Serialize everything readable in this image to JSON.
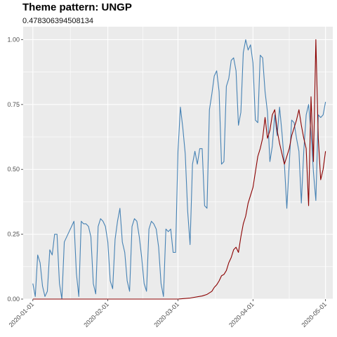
{
  "chart_data": {
    "type": "line",
    "title": "Theme pattern: UNGP",
    "subtitle": "0.478306394508134",
    "xlabel": "",
    "ylabel": "",
    "ylim": [
      0,
      1.05
    ],
    "xlim": [
      "2019-12-28",
      "2020-05-04"
    ],
    "y_ticks": [
      {
        "value": 0,
        "label": "0.00"
      },
      {
        "value": 0.25,
        "label": "0.25"
      },
      {
        "value": 0.5,
        "label": "0.50"
      },
      {
        "value": 0.75,
        "label": "0.75"
      },
      {
        "value": 1,
        "label": "1.00"
      }
    ],
    "x_ticks": [
      {
        "date": "2020-01-01",
        "label": "2020-01-01"
      },
      {
        "date": "2020-02-01",
        "label": "2020-02-01"
      },
      {
        "date": "2020-03-01",
        "label": "2020-03-01"
      },
      {
        "date": "2020-04-01",
        "label": "2020-04-01"
      },
      {
        "date": "2020-05-01",
        "label": "2020-05-01"
      }
    ],
    "grid": true,
    "series": [
      {
        "color": "#4682b4",
        "points": [
          [
            "2020-01-01",
            0.06
          ],
          [
            "2020-01-02",
            0.01
          ],
          [
            "2020-01-03",
            0.17
          ],
          [
            "2020-01-04",
            0.14
          ],
          [
            "2020-01-05",
            0.05
          ],
          [
            "2020-01-06",
            0.01
          ],
          [
            "2020-01-07",
            0.03
          ],
          [
            "2020-01-08",
            0.19
          ],
          [
            "2020-01-09",
            0.17
          ],
          [
            "2020-01-10",
            0.25
          ],
          [
            "2020-01-11",
            0.25
          ],
          [
            "2020-01-12",
            0.06
          ],
          [
            "2020-01-13",
            0.0
          ],
          [
            "2020-01-14",
            0.22
          ],
          [
            "2020-01-15",
            0.24
          ],
          [
            "2020-01-16",
            0.26
          ],
          [
            "2020-01-17",
            0.28
          ],
          [
            "2020-01-18",
            0.3
          ],
          [
            "2020-01-19",
            0.1
          ],
          [
            "2020-01-20",
            0.01
          ],
          [
            "2020-01-21",
            0.3
          ],
          [
            "2020-01-22",
            0.29
          ],
          [
            "2020-01-23",
            0.29
          ],
          [
            "2020-01-24",
            0.28
          ],
          [
            "2020-01-25",
            0.24
          ],
          [
            "2020-01-26",
            0.06
          ],
          [
            "2020-01-27",
            0.02
          ],
          [
            "2020-01-28",
            0.28
          ],
          [
            "2020-01-29",
            0.31
          ],
          [
            "2020-01-30",
            0.3
          ],
          [
            "2020-01-31",
            0.28
          ],
          [
            "2020-02-01",
            0.22
          ],
          [
            "2020-02-02",
            0.07
          ],
          [
            "2020-02-03",
            0.04
          ],
          [
            "2020-02-04",
            0.23
          ],
          [
            "2020-02-05",
            0.3
          ],
          [
            "2020-02-06",
            0.35
          ],
          [
            "2020-02-07",
            0.22
          ],
          [
            "2020-02-08",
            0.18
          ],
          [
            "2020-02-09",
            0.07
          ],
          [
            "2020-02-10",
            0.03
          ],
          [
            "2020-02-11",
            0.28
          ],
          [
            "2020-02-12",
            0.31
          ],
          [
            "2020-02-13",
            0.3
          ],
          [
            "2020-02-14",
            0.24
          ],
          [
            "2020-02-15",
            0.16
          ],
          [
            "2020-02-16",
            0.06
          ],
          [
            "2020-02-17",
            0.03
          ],
          [
            "2020-02-18",
            0.27
          ],
          [
            "2020-02-19",
            0.3
          ],
          [
            "2020-02-20",
            0.29
          ],
          [
            "2020-02-21",
            0.27
          ],
          [
            "2020-02-22",
            0.2
          ],
          [
            "2020-02-23",
            0.06
          ],
          [
            "2020-02-24",
            0.01
          ],
          [
            "2020-02-25",
            0.27
          ],
          [
            "2020-02-26",
            0.26
          ],
          [
            "2020-02-27",
            0.27
          ],
          [
            "2020-02-28",
            0.18
          ],
          [
            "2020-02-29",
            0.18
          ],
          [
            "2020-03-01",
            0.57
          ],
          [
            "2020-03-02",
            0.74
          ],
          [
            "2020-03-03",
            0.66
          ],
          [
            "2020-03-04",
            0.56
          ],
          [
            "2020-03-05",
            0.34
          ],
          [
            "2020-03-06",
            0.21
          ],
          [
            "2020-03-07",
            0.52
          ],
          [
            "2020-03-08",
            0.57
          ],
          [
            "2020-03-09",
            0.52
          ],
          [
            "2020-03-10",
            0.58
          ],
          [
            "2020-03-11",
            0.58
          ],
          [
            "2020-03-12",
            0.36
          ],
          [
            "2020-03-13",
            0.35
          ],
          [
            "2020-03-14",
            0.73
          ],
          [
            "2020-03-15",
            0.79
          ],
          [
            "2020-03-16",
            0.86
          ],
          [
            "2020-03-17",
            0.88
          ],
          [
            "2020-03-18",
            0.8
          ],
          [
            "2020-03-19",
            0.52
          ],
          [
            "2020-03-20",
            0.53
          ],
          [
            "2020-03-21",
            0.82
          ],
          [
            "2020-03-22",
            0.85
          ],
          [
            "2020-03-23",
            0.92
          ],
          [
            "2020-03-24",
            0.93
          ],
          [
            "2020-03-25",
            0.88
          ],
          [
            "2020-03-26",
            0.67
          ],
          [
            "2020-03-27",
            0.72
          ],
          [
            "2020-03-28",
            0.95
          ],
          [
            "2020-03-29",
            1.0
          ],
          [
            "2020-03-30",
            0.96
          ],
          [
            "2020-03-31",
            0.98
          ],
          [
            "2020-04-01",
            0.91
          ],
          [
            "2020-04-02",
            0.69
          ],
          [
            "2020-04-03",
            0.68
          ],
          [
            "2020-04-04",
            0.94
          ],
          [
            "2020-04-05",
            0.93
          ],
          [
            "2020-04-06",
            0.8
          ],
          [
            "2020-04-07",
            0.72
          ],
          [
            "2020-04-08",
            0.53
          ],
          [
            "2020-04-09",
            0.59
          ],
          [
            "2020-04-10",
            0.71
          ],
          [
            "2020-04-11",
            0.63
          ],
          [
            "2020-04-12",
            0.74
          ],
          [
            "2020-04-13",
            0.64
          ],
          [
            "2020-04-14",
            0.52
          ],
          [
            "2020-04-15",
            0.35
          ],
          [
            "2020-04-16",
            0.52
          ],
          [
            "2020-04-17",
            0.69
          ],
          [
            "2020-04-18",
            0.68
          ],
          [
            "2020-04-19",
            0.62
          ],
          [
            "2020-04-20",
            0.57
          ],
          [
            "2020-04-21",
            0.37
          ],
          [
            "2020-04-22",
            0.57
          ],
          [
            "2020-04-23",
            0.71
          ],
          [
            "2020-04-24",
            0.75
          ],
          [
            "2020-04-25",
            0.64
          ],
          [
            "2020-04-26",
            0.49
          ],
          [
            "2020-04-27",
            0.38
          ],
          [
            "2020-04-28",
            0.71
          ],
          [
            "2020-04-29",
            0.7
          ],
          [
            "2020-04-30",
            0.71
          ],
          [
            "2020-05-01",
            0.76
          ]
        ]
      },
      {
        "color": "#8b0000",
        "points": [
          [
            "2020-01-01",
            0.0
          ],
          [
            "2020-03-01",
            0.0
          ],
          [
            "2020-03-06",
            0.004
          ],
          [
            "2020-03-11",
            0.012
          ],
          [
            "2020-03-13",
            0.018
          ],
          [
            "2020-03-15",
            0.03
          ],
          [
            "2020-03-16",
            0.045
          ],
          [
            "2020-03-17",
            0.055
          ],
          [
            "2020-03-18",
            0.07
          ],
          [
            "2020-03-19",
            0.09
          ],
          [
            "2020-03-20",
            0.095
          ],
          [
            "2020-03-21",
            0.11
          ],
          [
            "2020-03-22",
            0.14
          ],
          [
            "2020-03-23",
            0.16
          ],
          [
            "2020-03-24",
            0.19
          ],
          [
            "2020-03-25",
            0.2
          ],
          [
            "2020-03-26",
            0.18
          ],
          [
            "2020-03-27",
            0.24
          ],
          [
            "2020-03-28",
            0.29
          ],
          [
            "2020-03-29",
            0.32
          ],
          [
            "2020-03-30",
            0.37
          ],
          [
            "2020-03-31",
            0.4
          ],
          [
            "2020-04-01",
            0.43
          ],
          [
            "2020-04-02",
            0.49
          ],
          [
            "2020-04-03",
            0.55
          ],
          [
            "2020-04-04",
            0.58
          ],
          [
            "2020-04-05",
            0.62
          ],
          [
            "2020-04-06",
            0.7
          ],
          [
            "2020-04-07",
            0.62
          ],
          [
            "2020-04-08",
            0.65
          ],
          [
            "2020-04-09",
            0.71
          ],
          [
            "2020-04-10",
            0.73
          ],
          [
            "2020-04-11",
            0.65
          ],
          [
            "2020-04-12",
            0.6
          ],
          [
            "2020-04-13",
            0.56
          ],
          [
            "2020-04-14",
            0.52
          ],
          [
            "2020-04-15",
            0.55
          ],
          [
            "2020-04-16",
            0.58
          ],
          [
            "2020-04-17",
            0.63
          ],
          [
            "2020-04-18",
            0.66
          ],
          [
            "2020-04-19",
            0.69
          ],
          [
            "2020-04-20",
            0.73
          ],
          [
            "2020-04-21",
            0.67
          ],
          [
            "2020-04-22",
            0.62
          ],
          [
            "2020-04-23",
            0.58
          ],
          [
            "2020-04-24",
            0.36
          ],
          [
            "2020-04-25",
            0.78
          ],
          [
            "2020-04-26",
            0.53
          ],
          [
            "2020-04-27",
            1.0
          ],
          [
            "2020-04-28",
            0.62
          ],
          [
            "2020-04-29",
            0.46
          ],
          [
            "2020-04-30",
            0.5
          ],
          [
            "2020-05-01",
            0.57
          ]
        ]
      }
    ]
  }
}
